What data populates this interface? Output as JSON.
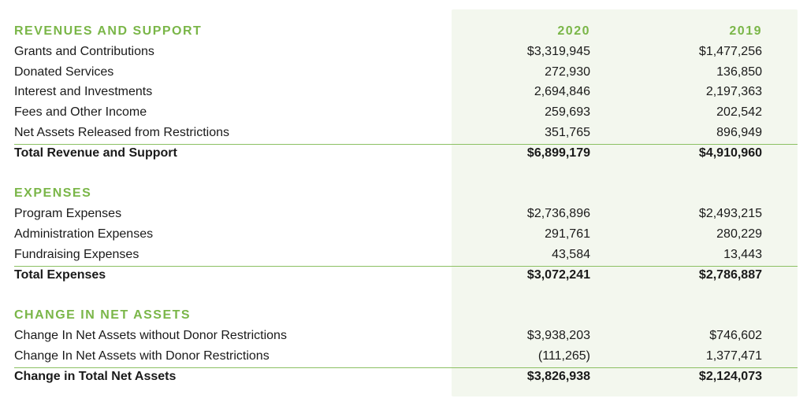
{
  "columns": {
    "year1": "2020",
    "year2": "2019"
  },
  "revenues": {
    "heading": "REVENUES AND SUPPORT",
    "rows": [
      {
        "label": "Grants and Contributions",
        "v2020": "$3,319,945",
        "v2019": "$1,477,256"
      },
      {
        "label": "Donated Services",
        "v2020": "272,930",
        "v2019": "136,850"
      },
      {
        "label": "Interest and Investments",
        "v2020": "2,694,846",
        "v2019": "2,197,363"
      },
      {
        "label": "Fees and Other Income",
        "v2020": "259,693",
        "v2019": "202,542"
      },
      {
        "label": "Net Assets Released from Restrictions",
        "v2020": "351,765",
        "v2019": "896,949"
      }
    ],
    "total": {
      "label": "Total Revenue and Support",
      "v2020": "$6,899,179",
      "v2019": "$4,910,960"
    }
  },
  "expenses": {
    "heading": "EXPENSES",
    "rows": [
      {
        "label": "Program Expenses",
        "v2020": "$2,736,896",
        "v2019": "$2,493,215"
      },
      {
        "label": "Administration Expenses",
        "v2020": "291,761",
        "v2019": "280,229"
      },
      {
        "label": "Fundraising Expenses",
        "v2020": "43,584",
        "v2019": "13,443"
      }
    ],
    "total": {
      "label": "Total Expenses",
      "v2020": "$3,072,241",
      "v2019": "$2,786,887"
    }
  },
  "net_assets": {
    "heading": "CHANGE IN NET ASSETS",
    "rows": [
      {
        "label": "Change In Net Assets without Donor Restrictions",
        "v2020": "$3,938,203",
        "v2019": "$746,602"
      },
      {
        "label": "Change In Net Assets with Donor Restrictions",
        "v2020": "(111,265)",
        "v2019": "1,377,471"
      }
    ],
    "total": {
      "label": "Change in Total Net Assets",
      "v2020": "$3,826,938",
      "v2019": "$2,124,073"
    }
  },
  "colors": {
    "accent": "#7ab648",
    "rule": "#8cc063",
    "shade": "#f3f7ee",
    "text": "#1a1a1a"
  }
}
